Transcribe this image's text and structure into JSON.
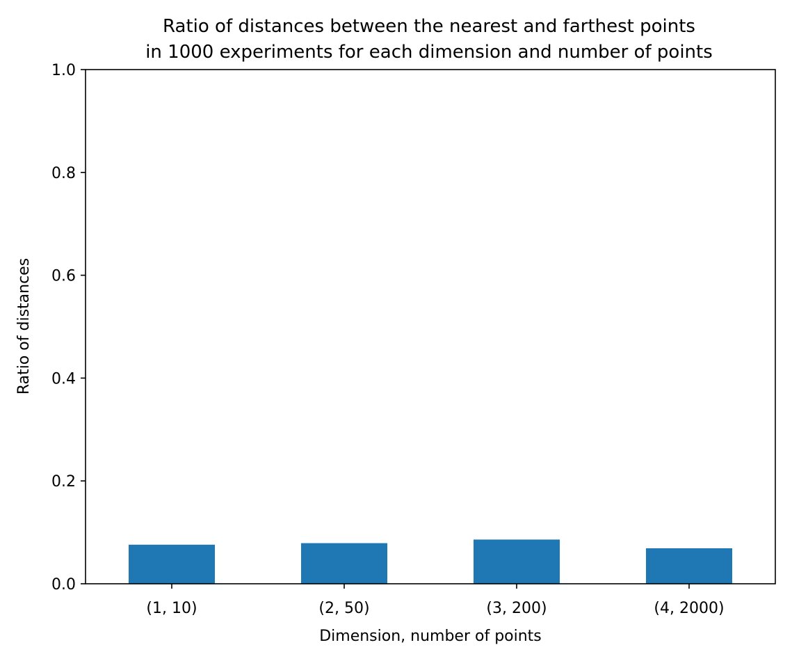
{
  "chart_data": {
    "type": "bar",
    "title": "Ratio of distances between the nearest and farthest points\nin 1000 experiments for each dimension and number of points",
    "title_lines": [
      "Ratio of distances between the nearest and farthest points",
      "in 1000 experiments for each dimension and number of points"
    ],
    "xlabel": "Dimension, number of points",
    "ylabel": "Ratio of distances",
    "categories": [
      "(1, 10)",
      "(2, 50)",
      "(3, 200)",
      "(4, 2000)"
    ],
    "values": [
      0.076,
      0.079,
      0.086,
      0.069
    ],
    "ylim": [
      0,
      1.0
    ],
    "yticks": [
      0.0,
      0.2,
      0.4,
      0.6,
      0.8,
      1.0
    ],
    "ytick_labels": [
      "0.0",
      "0.2",
      "0.4",
      "0.6",
      "0.8",
      "1.0"
    ],
    "bar_color": "#1f77b4",
    "grid": false,
    "legend": "none"
  }
}
